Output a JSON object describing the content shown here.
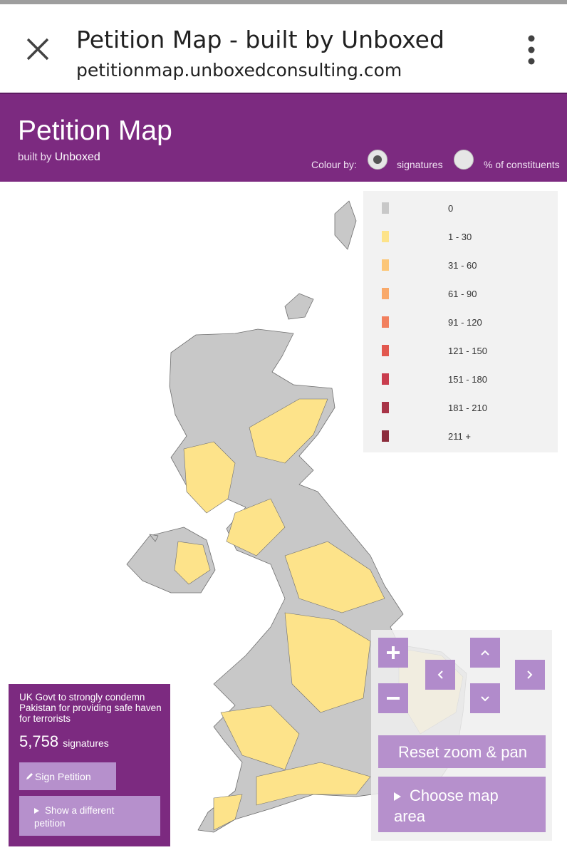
{
  "browser": {
    "title": "Petition Map - built by Unboxed",
    "url": "petitionmap.unboxedconsulting.com"
  },
  "header": {
    "title": "Petition Map",
    "subtitle": "built by",
    "brand": "Unboxed",
    "colour_by": "Colour by:",
    "options": [
      "signatures",
      "% of constituents"
    ]
  },
  "legend": [
    {
      "label": "0",
      "color": "#c8c8c8"
    },
    {
      "label": "1 - 30",
      "color": "#fde38a"
    },
    {
      "label": "31 - 60",
      "color": "#fcc677"
    },
    {
      "label": "61 - 90",
      "color": "#f9a96a"
    },
    {
      "label": "91 - 120",
      "color": "#f2805e"
    },
    {
      "label": "121 - 150",
      "color": "#e2584f"
    },
    {
      "label": "151 - 180",
      "color": "#c93d4e"
    },
    {
      "label": "181 - 210",
      "color": "#a83447"
    },
    {
      "label": "211 +",
      "color": "#8c2c3c"
    }
  ],
  "petition": {
    "title": "UK Govt to strongly condemn Pakistan for providing safe haven for terrorists",
    "count": "5,758",
    "count_unit": "signatures",
    "sign": "Sign Petition",
    "other": "Show a different petition"
  },
  "controls": {
    "reset": "Reset zoom & pan",
    "choose": "Choose map area"
  }
}
